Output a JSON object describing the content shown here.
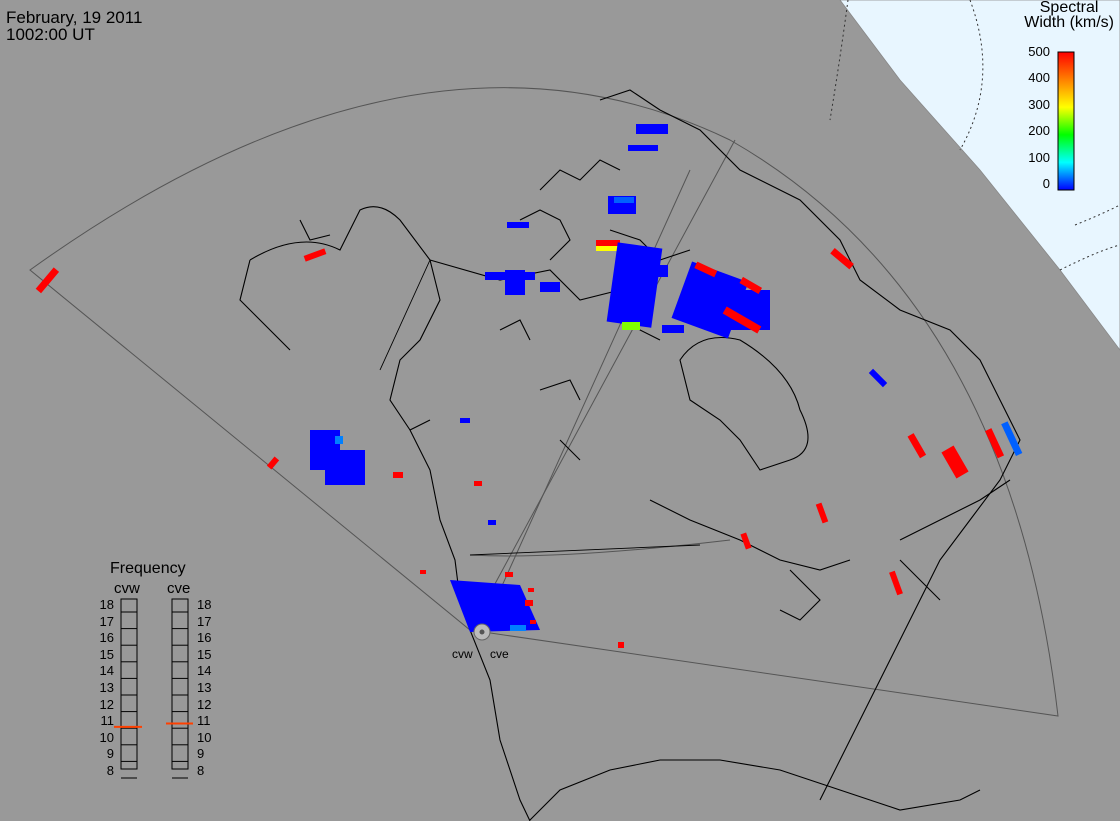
{
  "header": {
    "date": "February, 19 2011",
    "time": "1002:00 UT"
  },
  "colorbar": {
    "title_line1": "Spectral",
    "title_line2": "Width (km/s)",
    "ticks": [
      "500",
      "400",
      "300",
      "200",
      "100",
      "0"
    ],
    "colors": [
      "#ff0000",
      "#ff8000",
      "#ffff00",
      "#00ff00",
      "#00ffff",
      "#0000ff"
    ]
  },
  "frequency": {
    "title": "Frequency",
    "radars": [
      "cvw",
      "cve"
    ],
    "ticks": [
      "18",
      "17",
      "16",
      "15",
      "14",
      "13",
      "12",
      "11",
      "10",
      "9",
      "8"
    ],
    "values_mhz": [
      10.6,
      10.8
    ],
    "marker_color": "#ff4000"
  },
  "radar_labels": [
    "cvw",
    "cve"
  ],
  "colors": {
    "background": "#999999",
    "land": "#999999",
    "night_shadow": "#e8f6ff",
    "coastline": "#000000",
    "fov": "#666666"
  }
}
